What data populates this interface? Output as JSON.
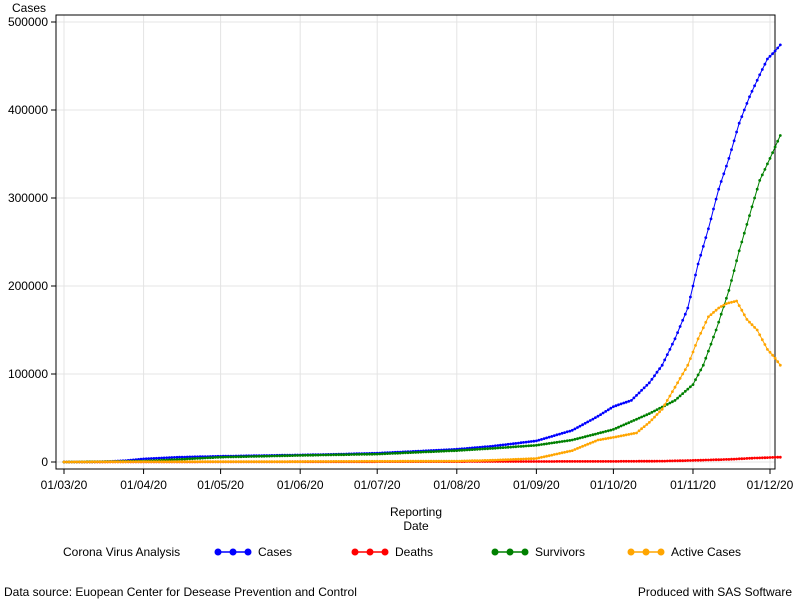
{
  "chart_data": {
    "type": "line",
    "title": "",
    "xlabel": "Reporting Date",
    "xlabel_lines": [
      "Reporting",
      "Date"
    ],
    "ylabel": "Cases",
    "x_tick_labels": [
      "01/03/20",
      "01/04/20",
      "01/05/20",
      "01/06/20",
      "01/07/20",
      "01/08/20",
      "01/09/20",
      "01/10/20",
      "01/11/20",
      "01/12/20"
    ],
    "y_tick_labels": [
      "0",
      "100000",
      "200000",
      "300000",
      "400000",
      "500000"
    ],
    "y_ticks": [
      0,
      100000,
      200000,
      300000,
      400000,
      500000
    ],
    "ylim": [
      0,
      500000
    ],
    "xlim": [
      "2020-03-01",
      "2020-12-01"
    ],
    "grid": true,
    "legend_title": "Corona Virus Analysis",
    "legend_position": "bottom",
    "series": [
      {
        "name": "Cases",
        "color": "#0000ff",
        "points": [
          [
            "2020-03-01",
            0
          ],
          [
            "2020-03-15",
            200
          ],
          [
            "2020-03-25",
            1500
          ],
          [
            "2020-04-01",
            3500
          ],
          [
            "2020-04-15",
            5500
          ],
          [
            "2020-05-01",
            6500
          ],
          [
            "2020-05-15",
            7200
          ],
          [
            "2020-06-01",
            8000
          ],
          [
            "2020-06-15",
            8800
          ],
          [
            "2020-07-01",
            10000
          ],
          [
            "2020-07-15",
            12000
          ],
          [
            "2020-08-01",
            14500
          ],
          [
            "2020-08-15",
            18000
          ],
          [
            "2020-09-01",
            24000
          ],
          [
            "2020-09-15",
            36000
          ],
          [
            "2020-09-25",
            52000
          ],
          [
            "2020-10-01",
            63000
          ],
          [
            "2020-10-08",
            70000
          ],
          [
            "2020-10-15",
            90000
          ],
          [
            "2020-10-20",
            110000
          ],
          [
            "2020-10-25",
            140000
          ],
          [
            "2020-10-30",
            175000
          ],
          [
            "2020-11-03",
            225000
          ],
          [
            "2020-11-07",
            265000
          ],
          [
            "2020-11-11",
            310000
          ],
          [
            "2020-11-15",
            345000
          ],
          [
            "2020-11-19",
            385000
          ],
          [
            "2020-11-23",
            415000
          ],
          [
            "2020-11-27",
            440000
          ],
          [
            "2020-11-30",
            458000
          ],
          [
            "2020-12-03",
            467000
          ],
          [
            "2020-12-05",
            474000
          ]
        ]
      },
      {
        "name": "Deaths",
        "color": "#ff0000",
        "points": [
          [
            "2020-03-01",
            0
          ],
          [
            "2020-04-01",
            100
          ],
          [
            "2020-05-01",
            200
          ],
          [
            "2020-06-01",
            300
          ],
          [
            "2020-07-01",
            400
          ],
          [
            "2020-08-01",
            500
          ],
          [
            "2020-09-01",
            600
          ],
          [
            "2020-10-01",
            700
          ],
          [
            "2020-10-20",
            1000
          ],
          [
            "2020-11-01",
            1800
          ],
          [
            "2020-11-15",
            3000
          ],
          [
            "2020-11-25",
            4500
          ],
          [
            "2020-12-05",
            5500
          ]
        ]
      },
      {
        "name": "Survivors",
        "color": "#008000",
        "points": [
          [
            "2020-03-01",
            0
          ],
          [
            "2020-04-01",
            1000
          ],
          [
            "2020-04-15",
            3000
          ],
          [
            "2020-05-01",
            5500
          ],
          [
            "2020-06-01",
            7500
          ],
          [
            "2020-07-01",
            9000
          ],
          [
            "2020-08-01",
            13000
          ],
          [
            "2020-08-15",
            15500
          ],
          [
            "2020-09-01",
            19000
          ],
          [
            "2020-09-15",
            25000
          ],
          [
            "2020-10-01",
            37000
          ],
          [
            "2020-10-15",
            55000
          ],
          [
            "2020-10-25",
            70000
          ],
          [
            "2020-11-01",
            88000
          ],
          [
            "2020-11-05",
            110000
          ],
          [
            "2020-11-10",
            150000
          ],
          [
            "2020-11-15",
            195000
          ],
          [
            "2020-11-19",
            240000
          ],
          [
            "2020-11-23",
            280000
          ],
          [
            "2020-11-27",
            320000
          ],
          [
            "2020-12-01",
            345000
          ],
          [
            "2020-12-05",
            371000
          ]
        ]
      },
      {
        "name": "Active Cases",
        "color": "#ffa500",
        "points": [
          [
            "2020-03-01",
            0
          ],
          [
            "2020-04-01",
            500
          ],
          [
            "2020-05-01",
            500
          ],
          [
            "2020-06-01",
            500
          ],
          [
            "2020-07-01",
            800
          ],
          [
            "2020-08-01",
            1000
          ],
          [
            "2020-08-15",
            2000
          ],
          [
            "2020-09-01",
            4000
          ],
          [
            "2020-09-15",
            13000
          ],
          [
            "2020-09-25",
            25000
          ],
          [
            "2020-10-01",
            28000
          ],
          [
            "2020-10-10",
            33000
          ],
          [
            "2020-10-15",
            45000
          ],
          [
            "2020-10-20",
            60000
          ],
          [
            "2020-10-25",
            85000
          ],
          [
            "2020-10-30",
            110000
          ],
          [
            "2020-11-03",
            140000
          ],
          [
            "2020-11-07",
            165000
          ],
          [
            "2020-11-11",
            175000
          ],
          [
            "2020-11-14",
            180000
          ],
          [
            "2020-11-18",
            183000
          ],
          [
            "2020-11-22",
            162000
          ],
          [
            "2020-11-26",
            150000
          ],
          [
            "2020-11-30",
            128000
          ],
          [
            "2020-12-03",
            118000
          ],
          [
            "2020-12-05",
            110000
          ]
        ]
      }
    ]
  },
  "footer": {
    "source": "Data source: Euopean Center for Desease Prevention and Control",
    "produced": "Produced with SAS Software"
  }
}
